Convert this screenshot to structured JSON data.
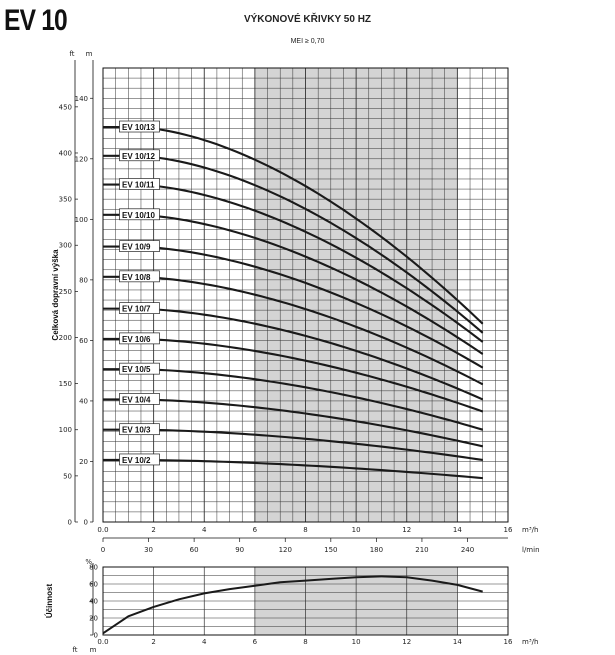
{
  "header": {
    "model": "EV 10",
    "title": "VÝKONOVÉ KŘIVKY 50 HZ",
    "subtitle": "MEI ≥ 0,70"
  },
  "colors": {
    "shaded_band": "#d4d4d4",
    "curve": "#1a1a1a",
    "grid": "#333333"
  },
  "chart_data": [
    {
      "type": "line",
      "ylabel": "Celková dopravní výška",
      "units": {
        "y_left": "ft",
        "y_right": "m",
        "x_top": "m³/h",
        "x_bottom": "l/min"
      },
      "xlim": [
        0,
        16
      ],
      "ylim": [
        0,
        150
      ],
      "x_ticks": [
        "0.0",
        "2",
        "4",
        "6",
        "8",
        "10",
        "12",
        "14",
        "16"
      ],
      "y_ticks_m": [
        "0",
        "20",
        "40",
        "60",
        "80",
        "100",
        "120",
        "140"
      ],
      "y_ticks_ft": [
        "0",
        "50",
        "100",
        "150",
        "200",
        "250",
        "300",
        "350",
        "400",
        "450"
      ],
      "lmin_ticks": [
        "0",
        "30",
        "60",
        "90",
        "120",
        "150",
        "180",
        "210",
        "240"
      ],
      "shaded_x_range": [
        6,
        14
      ],
      "grid": true,
      "series": [
        {
          "name": "EV 10/2",
          "shutoff": 20.5,
          "end": 14.5
        },
        {
          "name": "EV 10/3",
          "shutoff": 30.5,
          "end": 20.5
        },
        {
          "name": "EV 10/4",
          "shutoff": 40.5,
          "end": 25.0
        },
        {
          "name": "EV 10/5",
          "shutoff": 50.5,
          "end": 30.5
        },
        {
          "name": "EV 10/6",
          "shutoff": 60.5,
          "end": 36.5
        },
        {
          "name": "EV 10/7",
          "shutoff": 70.5,
          "end": 40.5
        },
        {
          "name": "EV 10/8",
          "shutoff": 81.0,
          "end": 45.5
        },
        {
          "name": "EV 10/9",
          "shutoff": 91.0,
          "end": 51.0
        },
        {
          "name": "EV 10/10",
          "shutoff": 101.5,
          "end": 55.5
        },
        {
          "name": "EV 10/11",
          "shutoff": 111.5,
          "end": 59.5
        },
        {
          "name": "EV 10/12",
          "shutoff": 121.0,
          "end": 62.5
        },
        {
          "name": "EV 10/13",
          "shutoff": 130.5,
          "end": 65.5
        }
      ],
      "flow_end": 15
    },
    {
      "type": "line",
      "ylabel": "Účinnost",
      "units": {
        "y": "%",
        "x": "m³/h"
      },
      "xlim": [
        0,
        16
      ],
      "ylim": [
        0,
        80
      ],
      "x_ticks": [
        "0.0",
        "2",
        "4",
        "6",
        "8",
        "10",
        "12",
        "14",
        "16"
      ],
      "y_ticks": [
        "0",
        "20",
        "40",
        "60",
        "80"
      ],
      "bottom_units": [
        "ft",
        "m"
      ],
      "shaded_x_range": [
        6,
        14
      ],
      "grid": true,
      "series": [
        {
          "x": [
            0,
            1,
            2,
            3,
            4,
            5,
            6,
            7,
            8,
            9,
            10,
            11,
            12,
            13,
            14,
            15
          ],
          "y": [
            2,
            22,
            33,
            42,
            49,
            54,
            58,
            62,
            64,
            66,
            68,
            69,
            68,
            64,
            59,
            51
          ]
        }
      ]
    }
  ]
}
